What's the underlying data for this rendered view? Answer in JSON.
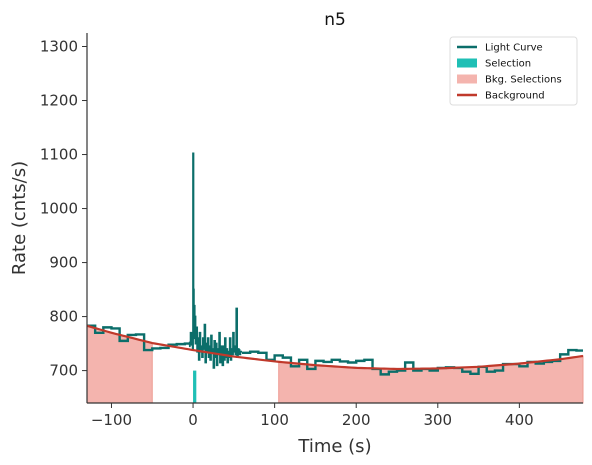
{
  "chart_data": {
    "type": "line",
    "title": "n5",
    "xlabel": "Time (s)",
    "ylabel": "Rate (cnts/s)",
    "xlim": [
      -130,
      478
    ],
    "ylim": [
      640,
      1325
    ],
    "xticks": [
      -100,
      0,
      100,
      200,
      300,
      400
    ],
    "yticks": [
      700,
      800,
      900,
      1000,
      1100,
      1200,
      1300
    ],
    "grid": false,
    "legend_position": "top-right",
    "legend": [
      {
        "label": "Light Curve",
        "kind": "line",
        "color": "#0b6e6a"
      },
      {
        "label": "Selection",
        "kind": "patch",
        "color": "#1fbfb5"
      },
      {
        "label": "Bkg. Selections",
        "kind": "patch",
        "color": "#f4b4ae"
      },
      {
        "label": "Background",
        "kind": "line",
        "color": "#c0392b"
      }
    ],
    "colors": {
      "light_curve": "#0b6e6a",
      "selection": "#1fbfb5",
      "bkg_selection": "#f4b4ae",
      "background": "#c0392b"
    },
    "light_curve": {
      "coarse_before": [
        [
          -130,
          783
        ],
        [
          -120,
          770
        ],
        [
          -110,
          780
        ],
        [
          -100,
          778
        ],
        [
          -90,
          755
        ],
        [
          -80,
          766
        ],
        [
          -70,
          767
        ],
        [
          -60,
          738
        ],
        [
          -50,
          741
        ],
        [
          -40,
          742
        ],
        [
          -30,
          748
        ],
        [
          -20,
          749
        ],
        [
          -10,
          750
        ],
        [
          -5,
          748
        ]
      ],
      "fine": [
        [
          -5,
          745
        ],
        [
          -4,
          752
        ],
        [
          -3,
          770
        ],
        [
          -2,
          748
        ],
        [
          -1,
          760
        ],
        [
          -0.5,
          740
        ],
        [
          0,
          1102
        ],
        [
          0.5,
          850
        ],
        [
          1,
          790
        ],
        [
          1.5,
          820
        ],
        [
          2,
          760
        ],
        [
          2.5,
          800
        ],
        [
          3,
          750
        ],
        [
          4,
          780
        ],
        [
          5,
          735
        ],
        [
          6,
          760
        ],
        [
          7,
          720
        ],
        [
          8,
          770
        ],
        [
          9,
          735
        ],
        [
          10,
          745
        ],
        [
          11,
          725
        ],
        [
          12,
          760
        ],
        [
          13,
          740
        ],
        [
          14,
          785
        ],
        [
          15,
          715
        ],
        [
          16,
          750
        ],
        [
          17,
          735
        ],
        [
          18,
          760
        ],
        [
          19,
          725
        ],
        [
          20,
          745
        ],
        [
          21,
          720
        ],
        [
          22,
          765
        ],
        [
          23,
          735
        ],
        [
          24,
          740
        ],
        [
          25,
          705
        ],
        [
          26,
          755
        ],
        [
          27,
          725
        ],
        [
          28,
          750
        ],
        [
          29,
          710
        ],
        [
          30,
          740
        ],
        [
          31,
          730
        ],
        [
          32,
          770
        ],
        [
          33,
          715
        ],
        [
          34,
          745
        ],
        [
          35,
          730
        ],
        [
          36,
          710
        ],
        [
          37,
          745
        ],
        [
          38,
          720
        ],
        [
          39,
          760
        ],
        [
          40,
          725
        ],
        [
          41,
          740
        ],
        [
          42,
          715
        ],
        [
          43,
          735
        ],
        [
          44,
          725
        ],
        [
          45,
          760
        ],
        [
          46,
          720
        ],
        [
          47,
          740
        ],
        [
          48,
          730
        ],
        [
          49,
          770
        ],
        [
          50,
          735
        ],
        [
          51,
          745
        ],
        [
          52,
          730
        ],
        [
          53,
          815
        ],
        [
          54,
          725
        ],
        [
          55,
          740
        ],
        [
          56,
          738
        ],
        [
          57,
          730
        ],
        [
          58,
          735
        ],
        [
          60,
          735
        ]
      ],
      "coarse_after": [
        [
          60,
          733
        ],
        [
          70,
          735
        ],
        [
          80,
          733
        ],
        [
          90,
          720
        ],
        [
          100,
          728
        ],
        [
          110,
          724
        ],
        [
          120,
          708
        ],
        [
          130,
          720
        ],
        [
          140,
          703
        ],
        [
          150,
          718
        ],
        [
          160,
          716
        ],
        [
          170,
          720
        ],
        [
          180,
          717
        ],
        [
          190,
          715
        ],
        [
          200,
          718
        ],
        [
          210,
          720
        ],
        [
          220,
          703
        ],
        [
          230,
          693
        ],
        [
          240,
          698
        ],
        [
          250,
          700
        ],
        [
          260,
          715
        ],
        [
          270,
          700
        ],
        [
          280,
          703
        ],
        [
          290,
          700
        ],
        [
          300,
          705
        ],
        [
          310,
          706
        ],
        [
          320,
          705
        ],
        [
          330,
          698
        ],
        [
          340,
          694
        ],
        [
          350,
          707
        ],
        [
          360,
          698
        ],
        [
          370,
          700
        ],
        [
          380,
          712
        ],
        [
          390,
          712
        ],
        [
          400,
          708
        ],
        [
          410,
          716
        ],
        [
          420,
          713
        ],
        [
          430,
          716
        ],
        [
          440,
          718
        ],
        [
          450,
          730
        ],
        [
          460,
          738
        ],
        [
          470,
          737
        ],
        [
          478,
          737
        ]
      ]
    },
    "selection": {
      "x_start": 0,
      "x_end": 4,
      "color": "#1fbfb5"
    },
    "bkg_selections": [
      [
        -130,
        -50
      ],
      [
        105,
        478
      ]
    ],
    "background": {
      "x": [
        -130,
        -100,
        -50,
        0,
        50,
        100,
        150,
        200,
        250,
        300,
        350,
        400,
        450,
        478
      ],
      "y": [
        783,
        770,
        751,
        738,
        726,
        717,
        710,
        705,
        703,
        704,
        707,
        713,
        721,
        727
      ]
    }
  }
}
